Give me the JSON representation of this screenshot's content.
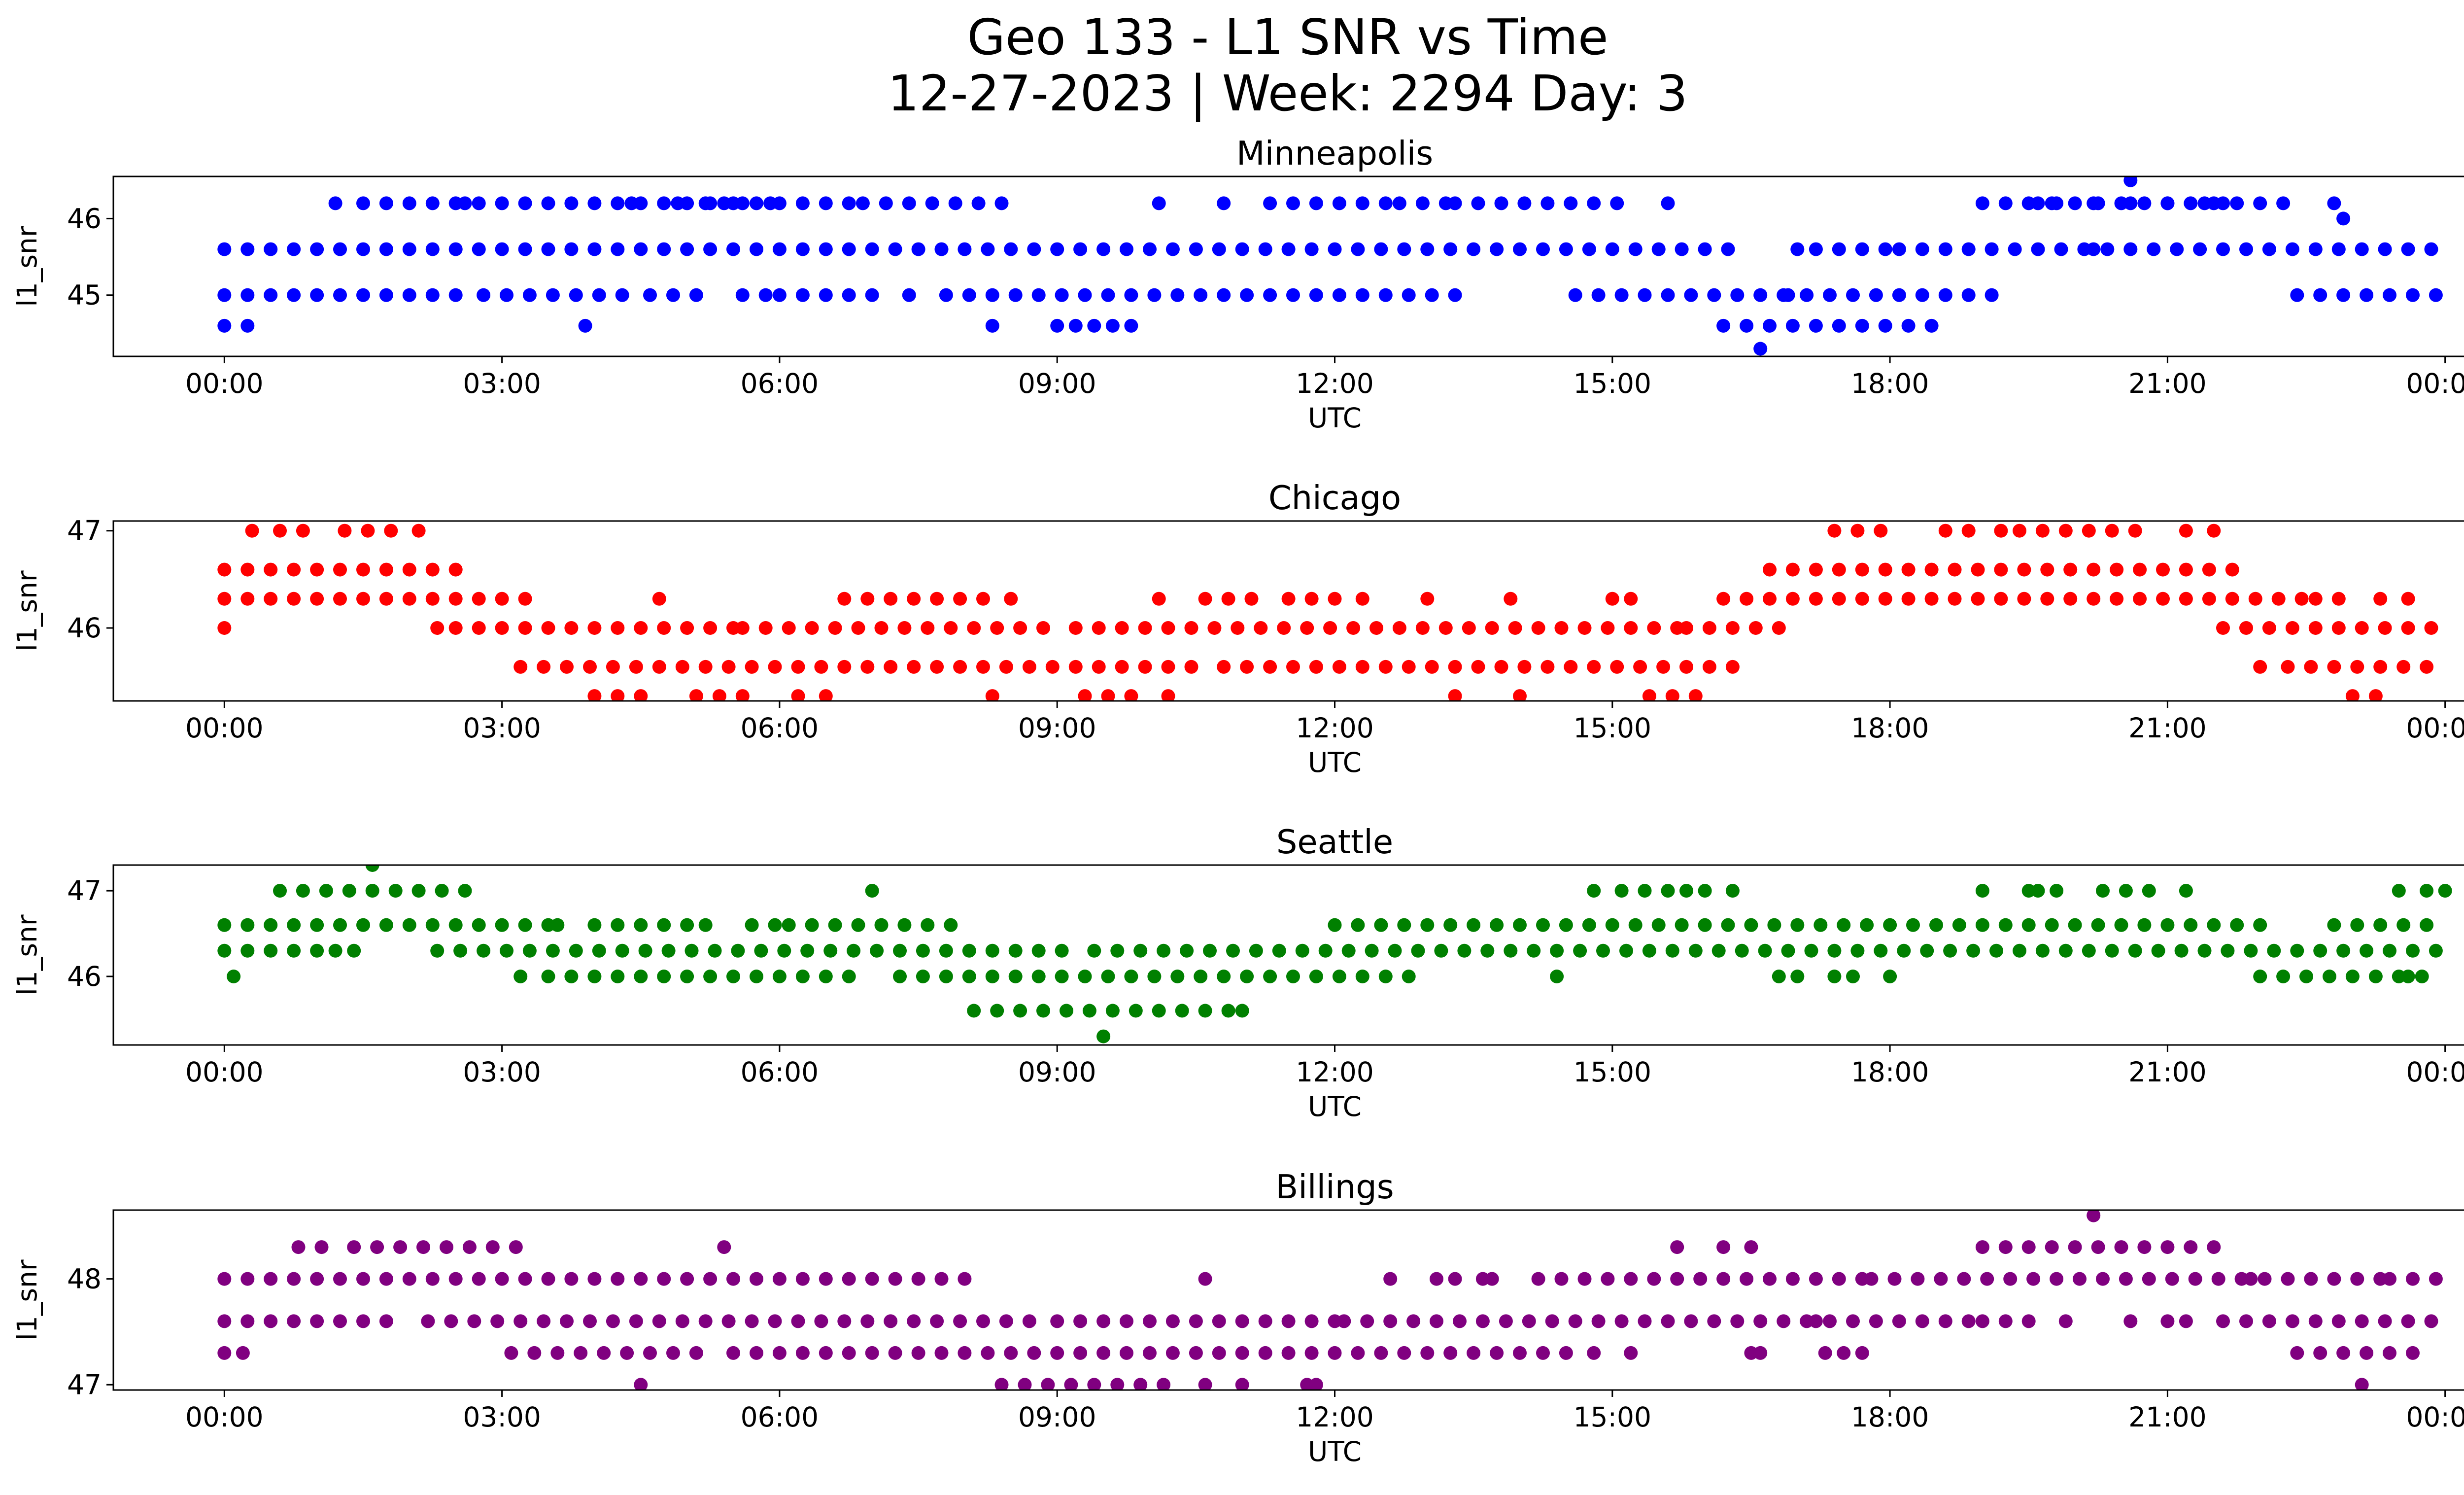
{
  "figure": {
    "title_line1": "Geo 133 - L1 SNR vs Time",
    "title_line2": "12-27-2023 | Week: 2294 Day: 3"
  },
  "chart_data": [
    {
      "type": "scatter",
      "title": "Minneapolis",
      "xlabel": "UTC",
      "ylabel": "l1_snr",
      "color": "#0000ff",
      "xlim": [
        -1.2,
        25.2
      ],
      "ylim": [
        44.2,
        46.55
      ],
      "xticks": [
        "00:00",
        "03:00",
        "06:00",
        "09:00",
        "12:00",
        "15:00",
        "18:00",
        "21:00",
        "00:00"
      ],
      "yticks": [
        45,
        46
      ],
      "levels": [
        {
          "y": 45.6,
          "ranges": [
            [
              0.0,
              16.3
            ],
            [
              17.2,
              18.0
            ],
            [
              18.1,
              24.0
            ]
          ]
        },
        {
          "y": 45.0,
          "ranges": [
            [
              0.0,
              2.6
            ],
            [
              2.8,
              4.4
            ],
            [
              4.6,
              5.2
            ],
            [
              5.6,
              5.9
            ],
            [
              6.0,
              7.2
            ],
            [
              7.4,
              7.6
            ],
            [
              7.8,
              13.4
            ],
            [
              14.6,
              19.2
            ],
            [
              22.4,
              24.0
            ]
          ]
        },
        {
          "y": 46.2,
          "ranges": [
            [
              1.2,
              1.3
            ],
            [
              1.5,
              6.3
            ],
            [
              6.5,
              6.8
            ],
            [
              6.9,
              7.8
            ],
            [
              7.9,
              8.3
            ],
            [
              8.4,
              8.6
            ],
            [
              10.1,
              10.2
            ],
            [
              10.8,
              11.0
            ],
            [
              11.3,
              12.6
            ],
            [
              12.7,
              13.2
            ],
            [
              13.3,
              15.1
            ],
            [
              15.6,
              15.8
            ],
            [
              19.0,
              22.4
            ],
            [
              22.8,
              23.0
            ]
          ]
        },
        {
          "y": 44.6,
          "ranges": [
            [
              0.0,
              0.3
            ],
            [
              16.2,
              18.5
            ]
          ]
        }
      ],
      "points": [
        [
          2.6,
          46.2
        ],
        [
          4.4,
          46.2
        ],
        [
          4.9,
          46.2
        ],
        [
          5.2,
          46.2
        ],
        [
          5.4,
          46.2
        ],
        [
          5.6,
          46.2
        ],
        [
          5.9,
          46.2
        ],
        [
          20.6,
          46.5
        ],
        [
          3.9,
          44.6
        ],
        [
          8.3,
          44.6
        ],
        [
          9.0,
          44.6
        ],
        [
          9.2,
          44.6
        ],
        [
          9.4,
          44.6
        ],
        [
          9.6,
          44.6
        ],
        [
          9.8,
          44.6
        ],
        [
          16.6,
          44.3
        ],
        [
          19.6,
          46.2
        ],
        [
          19.8,
          46.2
        ],
        [
          20.2,
          46.2
        ],
        [
          20.6,
          46.2
        ],
        [
          21.0,
          46.2
        ],
        [
          21.4,
          46.2
        ],
        [
          21.6,
          46.2
        ],
        [
          20.2,
          45.6
        ],
        [
          22.9,
          46.0
        ],
        [
          17.0,
          45.6
        ],
        [
          16.9,
          45.0
        ]
      ]
    },
    {
      "type": "scatter",
      "title": "Chicago",
      "xlabel": "UTC",
      "ylabel": "l1_snr",
      "color": "#ff0000",
      "xlim": [
        -1.2,
        25.2
      ],
      "ylim": [
        45.25,
        47.1
      ],
      "xticks": [
        "00:00",
        "03:00",
        "06:00",
        "09:00",
        "12:00",
        "15:00",
        "18:00",
        "21:00",
        "00:00"
      ],
      "yticks": [
        46,
        47
      ],
      "levels": [
        {
          "y": 46.6,
          "ranges": [
            [
              0.0,
              2.7
            ],
            [
              16.7,
              21.8
            ]
          ]
        },
        {
          "y": 46.3,
          "ranges": [
            [
              0.0,
              3.3
            ],
            [
              6.7,
              8.4
            ],
            [
              8.5,
              8.7
            ],
            [
              10.6,
              11.3
            ],
            [
              11.5,
              12.2
            ],
            [
              12.3,
              12.5
            ],
            [
              16.2,
              22.5
            ],
            [
              22.6,
              22.9
            ]
          ]
        },
        {
          "y": 46.0,
          "ranges": [
            [
              0.0,
              0.2
            ],
            [
              2.3,
              2.4
            ],
            [
              2.5,
              5.5
            ],
            [
              5.6,
              9.0
            ],
            [
              9.2,
              15.7
            ],
            [
              15.8,
              16.9
            ],
            [
              21.6,
              24.0
            ]
          ]
        },
        {
          "y": 45.6,
          "ranges": [
            [
              3.2,
              7.1
            ],
            [
              7.2,
              10.6
            ],
            [
              10.8,
              11.6
            ],
            [
              11.8,
              16.3
            ],
            [
              22.3,
              24.0
            ]
          ]
        },
        {
          "y": 45.3,
          "ranges": [
            [
              4.0,
              4.6
            ],
            [
              5.1,
              5.8
            ],
            [
              8.3,
              8.4
            ],
            [
              9.3,
              9.8
            ],
            [
              13.3,
              13.4
            ],
            [
              15.4,
              16.0
            ],
            [
              23.0,
              23.3
            ]
          ]
        },
        {
          "y": 47.0,
          "ranges": [
            [
              0.3,
              0.5
            ],
            [
              0.6,
              1.0
            ],
            [
              1.3,
              1.8
            ],
            [
              17.4,
              18.0
            ],
            [
              18.6,
              19.0
            ],
            [
              19.4,
              20.8
            ]
          ]
        }
      ],
      "points": [
        [
          2.1,
          47.0
        ],
        [
          6.2,
          45.3
        ],
        [
          6.5,
          45.3
        ],
        [
          10.2,
          45.3
        ],
        [
          14.0,
          45.3
        ],
        [
          13.9,
          46.3
        ],
        [
          15.0,
          46.3
        ],
        [
          15.2,
          46.3
        ],
        [
          10.1,
          46.3
        ],
        [
          13.0,
          46.3
        ],
        [
          21.2,
          47.0
        ],
        [
          21.5,
          47.0
        ],
        [
          19.2,
          47.0
        ],
        [
          22.0,
          45.6
        ],
        [
          23.3,
          46.3
        ],
        [
          23.6,
          46.3
        ],
        [
          4.7,
          46.3
        ]
      ]
    },
    {
      "type": "scatter",
      "title": "Seattle",
      "xlabel": "UTC",
      "ylabel": "l1_snr",
      "color": "#008000",
      "xlim": [
        -1.2,
        25.2
      ],
      "ylim": [
        45.2,
        47.3
      ],
      "xticks": [
        "00:00",
        "03:00",
        "06:00",
        "09:00",
        "12:00",
        "15:00",
        "18:00",
        "21:00",
        "00:00"
      ],
      "yticks": [
        46,
        47
      ],
      "levels": [
        {
          "y": 46.6,
          "ranges": [
            [
              0.0,
              3.5
            ],
            [
              3.6,
              3.7
            ],
            [
              4.0,
              5.0
            ],
            [
              5.2,
              5.4
            ],
            [
              5.7,
              6.0
            ],
            [
              6.1,
              7.0
            ],
            [
              7.1,
              7.5
            ],
            [
              7.6,
              8.0
            ],
            [
              12.0,
              22.0
            ],
            [
              22.8,
              24.0
            ]
          ]
        },
        {
          "y": 46.3,
          "ranges": [
            [
              0.0,
              1.0
            ],
            [
              2.3,
              9.2
            ],
            [
              9.4,
              24.0
            ]
          ]
        },
        {
          "y": 46.0,
          "ranges": [
            [
              0.1,
              0.3
            ],
            [
              3.2,
              3.3
            ],
            [
              3.5,
              5.9
            ],
            [
              6.0,
              6.9
            ],
            [
              7.3,
              12.6
            ],
            [
              12.8,
              12.9
            ],
            [
              22.0,
              23.8
            ]
          ]
        },
        {
          "y": 47.0,
          "ranges": [
            [
              0.6,
              2.6
            ],
            [
              15.1,
              15.7
            ],
            [
              19.8,
              20.0
            ],
            [
              20.3,
              21.0
            ]
          ]
        },
        {
          "y": 45.6,
          "ranges": [
            [
              8.1,
              8.4
            ],
            [
              8.6,
              10.9
            ],
            [
              11.0,
              11.2
            ]
          ]
        }
      ],
      "points": [
        [
          1.2,
          46.3
        ],
        [
          1.4,
          46.3
        ],
        [
          1.6,
          47.3
        ],
        [
          7.0,
          47.0
        ],
        [
          14.4,
          46.0
        ],
        [
          14.8,
          47.0
        ],
        [
          16.0,
          47.0
        ],
        [
          16.3,
          47.0
        ],
        [
          16.8,
          46.0
        ],
        [
          17.0,
          46.0
        ],
        [
          17.4,
          46.0
        ],
        [
          17.6,
          46.0
        ],
        [
          18.0,
          46.0
        ],
        [
          19.0,
          47.0
        ],
        [
          19.5,
          47.0
        ],
        [
          19.6,
          47.0
        ],
        [
          21.2,
          47.0
        ],
        [
          23.8,
          47.0
        ],
        [
          24.0,
          47.0
        ],
        [
          23.5,
          47.0
        ],
        [
          23.6,
          46.0
        ],
        [
          9.5,
          45.3
        ],
        [
          15.8,
          47.0
        ]
      ]
    },
    {
      "type": "scatter",
      "title": "Billings",
      "xlabel": "UTC",
      "ylabel": "l1_snr",
      "color": "#800080",
      "xlim": [
        -1.2,
        25.2
      ],
      "ylim": [
        46.95,
        48.65
      ],
      "xticks": [
        "00:00",
        "03:00",
        "06:00",
        "09:00",
        "12:00",
        "15:00",
        "18:00",
        "21:00",
        "00:00"
      ],
      "yticks": [
        47,
        48
      ],
      "levels": [
        {
          "y": 48.0,
          "ranges": [
            [
              0.0,
              7.8
            ],
            [
              14.2,
              17.7
            ],
            [
              17.8,
              23.3
            ],
            [
              23.4,
              24.0
            ]
          ]
        },
        {
          "y": 47.6,
          "ranges": [
            [
              0.0,
              1.9
            ],
            [
              2.2,
              8.8
            ],
            [
              9.0,
              12.0
            ],
            [
              12.1,
              18.9
            ],
            [
              19.0,
              19.6
            ],
            [
              21.6,
              24.0
            ]
          ]
        },
        {
          "y": 47.3,
          "ranges": [
            [
              3.1,
              5.2
            ],
            [
              5.5,
              6.3
            ],
            [
              6.5,
              14.5
            ],
            [
              22.4,
              23.7
            ]
          ]
        },
        {
          "y": 48.3,
          "ranges": [
            [
              0.8,
              1.2
            ],
            [
              1.4,
              3.3
            ],
            [
              19.0,
              21.5
            ]
          ]
        },
        {
          "y": 47.0,
          "ranges": [
            [
              8.4,
              10.3
            ]
          ]
        },
        {
          "y": 48.6,
          "ranges": [
            [
              20.2,
              20.3
            ]
          ]
        }
      ],
      "points": [
        [
          4.5,
          47.0
        ],
        [
          5.4,
          48.3
        ],
        [
          8.0,
          48.0
        ],
        [
          10.6,
          47.0
        ],
        [
          10.6,
          48.0
        ],
        [
          11.0,
          47.0
        ],
        [
          11.7,
          47.0
        ],
        [
          11.8,
          47.0
        ],
        [
          12.6,
          48.0
        ],
        [
          13.1,
          48.0
        ],
        [
          13.3,
          48.0
        ],
        [
          13.6,
          48.0
        ],
        [
          13.7,
          48.0
        ],
        [
          14.8,
          47.3
        ],
        [
          15.2,
          47.3
        ],
        [
          15.7,
          48.3
        ],
        [
          16.2,
          48.3
        ],
        [
          16.5,
          48.3
        ],
        [
          16.5,
          47.3
        ],
        [
          16.6,
          47.3
        ],
        [
          17.3,
          47.3
        ],
        [
          17.5,
          47.3
        ],
        [
          17.7,
          47.3
        ],
        [
          17.2,
          47.6
        ],
        [
          20.6,
          47.6
        ],
        [
          21.0,
          47.6
        ],
        [
          21.2,
          47.6
        ],
        [
          21.9,
          48.0
        ],
        [
          23.1,
          47.0
        ],
        [
          0.0,
          47.3
        ],
        [
          0.2,
          47.3
        ],
        [
          19.9,
          47.6
        ]
      ]
    }
  ]
}
